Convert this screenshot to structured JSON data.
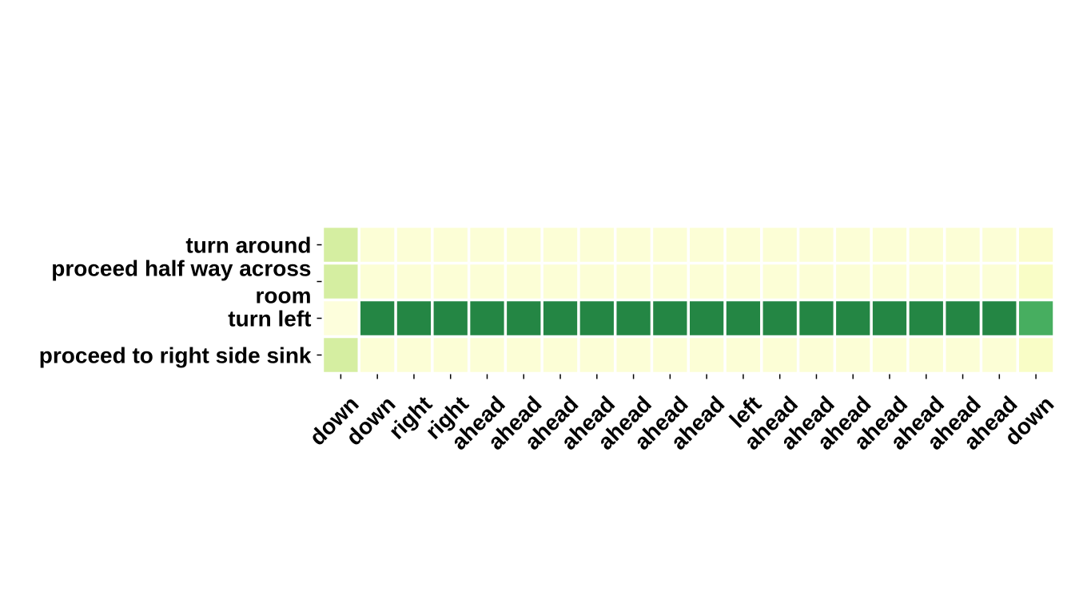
{
  "chart_data": {
    "type": "heatmap",
    "title": "",
    "xlabel": "",
    "ylabel": "",
    "x": [
      "down",
      "down",
      "right",
      "right",
      "ahead",
      "ahead",
      "ahead",
      "ahead",
      "ahead",
      "ahead",
      "ahead",
      "left",
      "ahead",
      "ahead",
      "ahead",
      "ahead",
      "ahead",
      "ahead",
      "ahead",
      "down"
    ],
    "y": [
      "turn around",
      "proceed half way across room",
      "turn left",
      "proceed to right side sink"
    ],
    "values": [
      [
        0.3,
        0.05,
        0.05,
        0.05,
        0.05,
        0.05,
        0.05,
        0.05,
        0.05,
        0.05,
        0.05,
        0.05,
        0.05,
        0.05,
        0.05,
        0.05,
        0.05,
        0.05,
        0.05,
        0.08
      ],
      [
        0.3,
        0.05,
        0.05,
        0.05,
        0.05,
        0.05,
        0.05,
        0.05,
        0.05,
        0.05,
        0.05,
        0.05,
        0.05,
        0.05,
        0.05,
        0.05,
        0.05,
        0.05,
        0.05,
        0.1
      ],
      [
        0.03,
        0.85,
        0.85,
        0.85,
        0.85,
        0.85,
        0.85,
        0.85,
        0.85,
        0.85,
        0.85,
        0.85,
        0.85,
        0.85,
        0.85,
        0.85,
        0.85,
        0.85,
        0.85,
        0.7
      ],
      [
        0.3,
        0.05,
        0.05,
        0.05,
        0.05,
        0.05,
        0.05,
        0.05,
        0.05,
        0.05,
        0.05,
        0.05,
        0.05,
        0.05,
        0.05,
        0.05,
        0.05,
        0.05,
        0.05,
        0.1
      ]
    ],
    "colormap": "YlGn",
    "colors": [
      "#ffffe5",
      "#f7fcb9",
      "#d9f0a3",
      "#addd8e",
      "#78c679",
      "#41ab5d",
      "#238443",
      "#006837"
    ],
    "vrange": [
      0,
      1
    ],
    "grid": false,
    "legend": "none"
  }
}
